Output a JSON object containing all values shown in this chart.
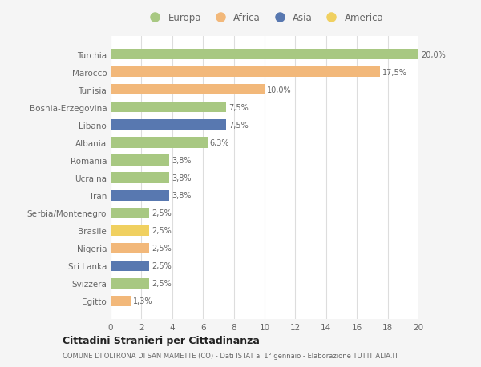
{
  "categories": [
    "Turchia",
    "Marocco",
    "Tunisia",
    "Bosnia-Erzegovina",
    "Libano",
    "Albania",
    "Romania",
    "Ucraina",
    "Iran",
    "Serbia/Montenegro",
    "Brasile",
    "Nigeria",
    "Sri Lanka",
    "Svizzera",
    "Egitto"
  ],
  "values": [
    20.0,
    17.5,
    10.0,
    7.5,
    7.5,
    6.3,
    3.8,
    3.8,
    3.8,
    2.5,
    2.5,
    2.5,
    2.5,
    2.5,
    1.3
  ],
  "labels": [
    "20,0%",
    "17,5%",
    "10,0%",
    "7,5%",
    "7,5%",
    "6,3%",
    "3,8%",
    "3,8%",
    "3,8%",
    "2,5%",
    "2,5%",
    "2,5%",
    "2,5%",
    "2,5%",
    "1,3%"
  ],
  "continents": [
    "Europa",
    "Africa",
    "Africa",
    "Europa",
    "Asia",
    "Europa",
    "Europa",
    "Europa",
    "Asia",
    "Europa",
    "America",
    "Africa",
    "Asia",
    "Europa",
    "Africa"
  ],
  "colors": {
    "Europa": "#a8c882",
    "Africa": "#f2b87a",
    "Asia": "#5878b0",
    "America": "#f0d060"
  },
  "legend_order": [
    "Europa",
    "Africa",
    "Asia",
    "America"
  ],
  "bg_color": "#f5f5f5",
  "plot_bg_color": "#ffffff",
  "title": "Cittadini Stranieri per Cittadinanza",
  "subtitle": "COMUNE DI OLTRONA DI SAN MAMETTE (CO) - Dati ISTAT al 1° gennaio - Elaborazione TUTTITALIA.IT",
  "xlim": [
    0,
    20
  ],
  "xticks": [
    0,
    2,
    4,
    6,
    8,
    10,
    12,
    14,
    16,
    18,
    20
  ],
  "bar_height": 0.6
}
